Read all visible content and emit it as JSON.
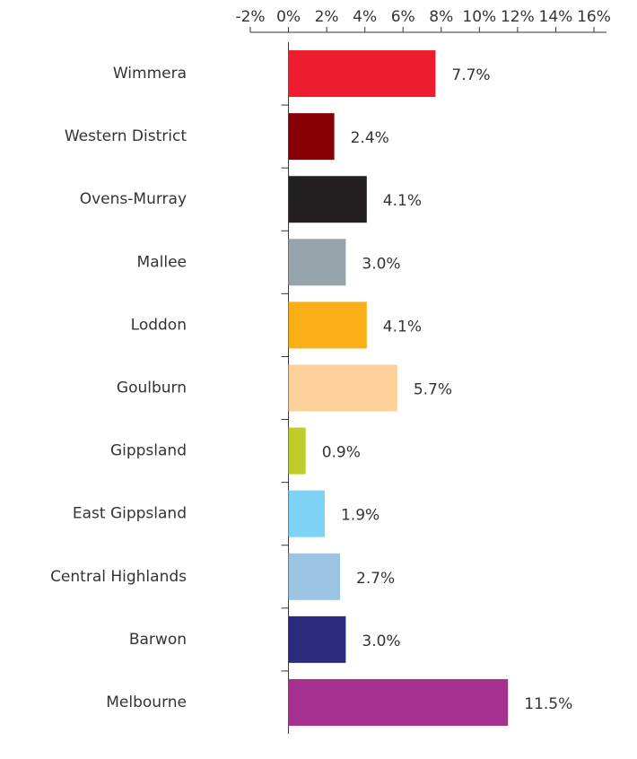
{
  "chart_data": {
    "type": "hbar",
    "categories": [
      "Wimmera",
      "Western District",
      "Ovens-Murray",
      "Mallee",
      "Loddon",
      "Goulburn",
      "Gippsland",
      "East Gippsland",
      "Central Highlands",
      "Barwon",
      "Melbourne"
    ],
    "values": [
      7.7,
      2.4,
      4.1,
      3.0,
      4.1,
      5.7,
      0.9,
      1.9,
      2.7,
      3.0,
      11.5
    ],
    "value_labels": [
      "7.7%",
      "2.4%",
      "4.1%",
      "3.0%",
      "4.1%",
      "5.7%",
      "0.9%",
      "1.9%",
      "2.7%",
      "3.0%",
      "11.5%"
    ],
    "colors": [
      "#ed1c2e",
      "#870006",
      "#231f20",
      "#97a4ab",
      "#fbaf17",
      "#fdd09a",
      "#bfcd2b",
      "#7dd3f5",
      "#9bc4e2",
      "#2b2a7c",
      "#a4308f"
    ],
    "xlim": [
      -2,
      16
    ],
    "xticks": [
      {
        "value": -2,
        "label": "-2%"
      },
      {
        "value": 0,
        "label": "0%"
      },
      {
        "value": 2,
        "label": "2%"
      },
      {
        "value": 4,
        "label": "4%"
      },
      {
        "value": 6,
        "label": "6%"
      },
      {
        "value": 8,
        "label": "8%"
      },
      {
        "value": 10,
        "label": "10%"
      },
      {
        "value": 12,
        "label": "12%"
      },
      {
        "value": 14,
        "label": "14%"
      },
      {
        "value": 16,
        "label": "16%"
      }
    ]
  }
}
